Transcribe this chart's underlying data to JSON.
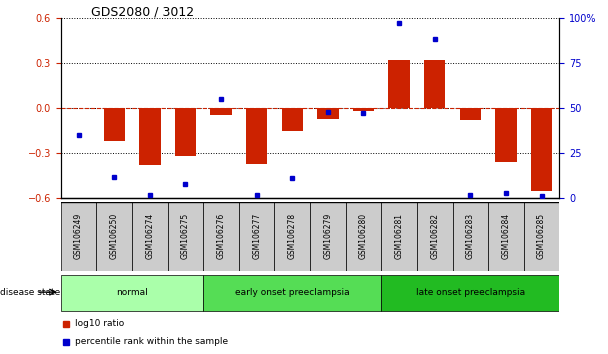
{
  "title": "GDS2080 / 3012",
  "samples": [
    "GSM106249",
    "GSM106250",
    "GSM106274",
    "GSM106275",
    "GSM106276",
    "GSM106277",
    "GSM106278",
    "GSM106279",
    "GSM106280",
    "GSM106281",
    "GSM106282",
    "GSM106283",
    "GSM106284",
    "GSM106285"
  ],
  "log10_ratio": [
    0.0,
    -0.22,
    -0.38,
    -0.32,
    -0.05,
    -0.37,
    -0.15,
    -0.07,
    -0.02,
    0.32,
    0.32,
    -0.08,
    -0.36,
    -0.55
  ],
  "percentile_rank": [
    35,
    12,
    2,
    8,
    55,
    2,
    11,
    48,
    47,
    97,
    88,
    2,
    3,
    1
  ],
  "groups": [
    {
      "label": "normal",
      "start": 0,
      "end": 3,
      "color": "#aaffaa"
    },
    {
      "label": "early onset preeclampsia",
      "start": 4,
      "end": 8,
      "color": "#55dd55"
    },
    {
      "label": "late onset preeclampsia",
      "start": 9,
      "end": 13,
      "color": "#22bb22"
    }
  ],
  "ylim_left": [
    -0.6,
    0.6
  ],
  "ylim_right": [
    0,
    100
  ],
  "yticks_left": [
    -0.6,
    -0.3,
    0.0,
    0.3,
    0.6
  ],
  "yticks_right": [
    0,
    25,
    50,
    75,
    100
  ],
  "bar_color": "#cc2200",
  "dot_color": "#0000cc",
  "zero_line_color": "#cc2200",
  "grid_color": "#000000",
  "ticklabel_bg": "#cccccc",
  "legend_items": [
    "log10 ratio",
    "percentile rank within the sample"
  ]
}
